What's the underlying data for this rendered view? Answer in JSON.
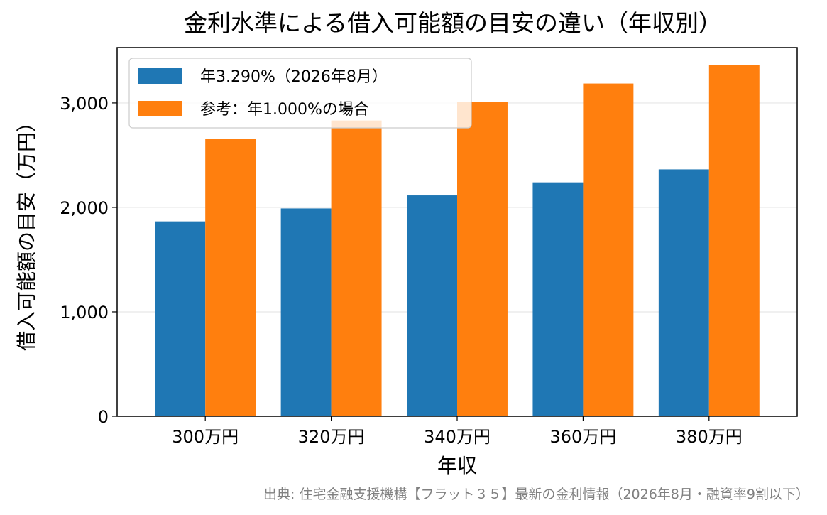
{
  "chart_data": {
    "type": "bar",
    "title": "金利水準による借入可能額の目安の違い（年収別）",
    "xlabel": "年収",
    "ylabel": "借入可能額の目安（万円）",
    "categories": [
      "300万円",
      "320万円",
      "340万円",
      "360万円",
      "380万円"
    ],
    "series": [
      {
        "name": "年3.290%（2026年8月）",
        "color": "#1f77b4",
        "values": [
          1866,
          1990,
          2115,
          2240,
          2364
        ]
      },
      {
        "name": "参考：年1.000%の場合",
        "color": "#ff7f0e",
        "values": [
          2655,
          2832,
          3009,
          3186,
          3363
        ]
      }
    ],
    "ylim": [
      0,
      3530
    ],
    "yticks": [
      0,
      1000,
      2000,
      3000
    ],
    "ytick_labels": [
      "0",
      "1,000",
      "2,000",
      "3,000"
    ],
    "grid": "horizontal",
    "legend_position": "top-left",
    "source_note": "出典: 住宅金融支援機構【フラット３５】最新の金利情報（2026年8月・融資率9割以下）"
  }
}
